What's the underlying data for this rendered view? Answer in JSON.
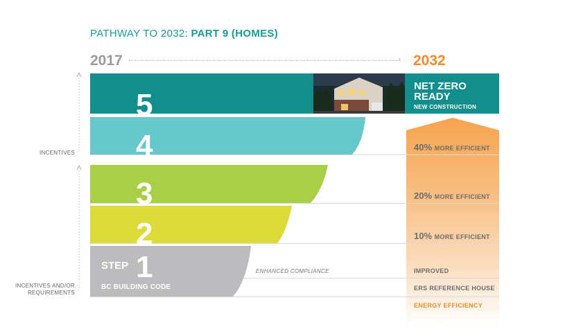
{
  "title": {
    "prefix": "PATHWAY TO 2032:",
    "bold": "PART 9 (HOMES)"
  },
  "years": {
    "start": "2017",
    "end": "2032"
  },
  "steps": [
    {
      "number": "5",
      "color": "#128e8c"
    },
    {
      "number": "4",
      "color": "#66c8cb"
    },
    {
      "number": "3",
      "color": "#a8cf45"
    },
    {
      "number": "2",
      "color": "#dcdb3a"
    },
    {
      "number": "1",
      "color": "#bcbbbd",
      "prefix": "STEP",
      "caption": "BC BUILDING CODE"
    }
  ],
  "net_zero": {
    "line1": "NET ZERO",
    "line2": "READY",
    "sub": "NEW CONSTRUCTION"
  },
  "side_labels": {
    "incentives": "INCENTIVES",
    "incentives_req": "INCENTIVES AND/OR\nREQUIREMENTS"
  },
  "enhanced": "ENHANCED COMPLIANCE",
  "efficiency": [
    {
      "pct": "40%",
      "text": "MORE EFFICIENT"
    },
    {
      "pct": "20%",
      "text": "MORE EFFICIENT"
    },
    {
      "pct": "10%",
      "text": "MORE EFFICIENT"
    }
  ],
  "right_labels": {
    "improved": "IMPROVED",
    "ers": "ERS REFERENCE HOUSE",
    "energy": "ENERGY EFFICIENCY"
  },
  "colors": {
    "teal": "#128e8c",
    "orange": "#f28c28",
    "grey": "#9b9b9b"
  }
}
